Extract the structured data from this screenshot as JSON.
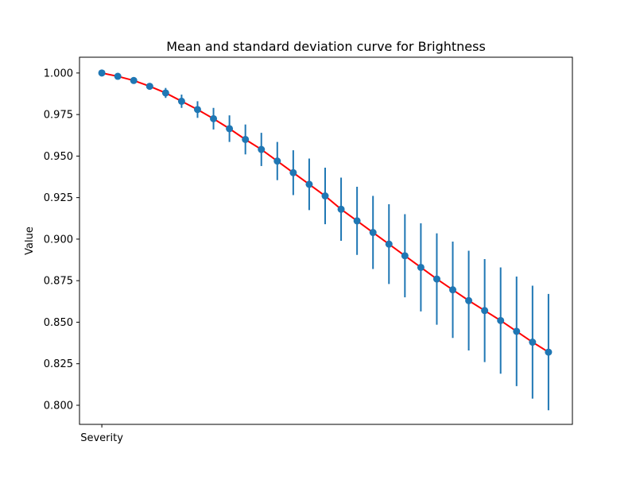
{
  "chart_data": {
    "type": "line",
    "title": "Mean and standard deviation curve for Brightness",
    "xlabel": "",
    "ylabel": "Value",
    "x_tick_labels": [
      "Severity"
    ],
    "y_ticks": [
      0.8,
      0.825,
      0.85,
      0.875,
      0.9,
      0.925,
      0.95,
      0.975,
      1.0
    ],
    "y_tick_labels": [
      "0.800",
      "0.825",
      "0.850",
      "0.875",
      "0.900",
      "0.925",
      "0.950",
      "0.975",
      "1.000"
    ],
    "ylim": [
      0.7885,
      1.0095
    ],
    "xlim": [
      -1.4,
      29.5
    ],
    "grid": false,
    "x": [
      0,
      1,
      2,
      3,
      4,
      5,
      6,
      7,
      8,
      9,
      10,
      11,
      12,
      13,
      14,
      15,
      16,
      17,
      18,
      19,
      20,
      21,
      22,
      23,
      24,
      25,
      26,
      27,
      28
    ],
    "series": [
      {
        "mean": [
          1.0,
          0.998,
          0.9955,
          0.992,
          0.988,
          0.983,
          0.978,
          0.9725,
          0.9665,
          0.96,
          0.954,
          0.947,
          0.94,
          0.933,
          0.926,
          0.918,
          0.911,
          0.904,
          0.897,
          0.89,
          0.883,
          0.876,
          0.8695,
          0.863,
          0.857,
          0.851,
          0.8445,
          0.838,
          0.832
        ],
        "std": [
          0.0,
          0.0,
          0.0005,
          0.0015,
          0.003,
          0.004,
          0.005,
          0.0065,
          0.008,
          0.009,
          0.01,
          0.0115,
          0.0135,
          0.0155,
          0.017,
          0.019,
          0.0205,
          0.022,
          0.024,
          0.025,
          0.0265,
          0.0275,
          0.029,
          0.03,
          0.031,
          0.032,
          0.033,
          0.034,
          0.035
        ]
      }
    ],
    "colors": {
      "line": "#ff0000",
      "marker": "#1f77b4",
      "errorbar": "#1f77b4"
    }
  }
}
